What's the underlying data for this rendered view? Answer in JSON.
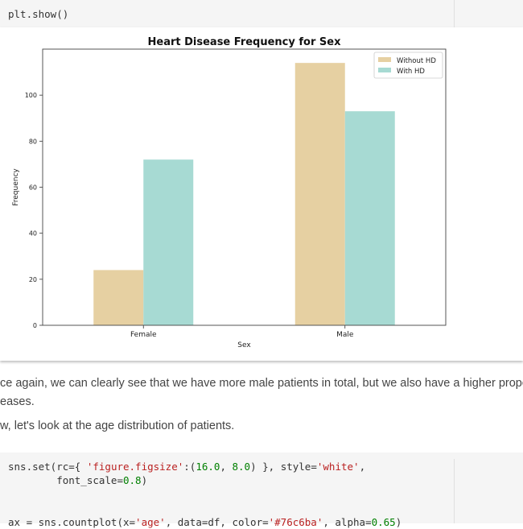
{
  "cell_top": {
    "code": "plt.show()"
  },
  "chart_data": {
    "type": "bar",
    "title": "Heart Disease Frequency for Sex",
    "xlabel": "Sex",
    "ylabel": "Frequency",
    "categories": [
      "Female",
      "Male"
    ],
    "series": [
      {
        "name": "Without HD",
        "values": [
          24,
          114
        ],
        "color": "#e6d0a2"
      },
      {
        "name": "With HD",
        "values": [
          72,
          93
        ],
        "color": "#a7dad3"
      }
    ],
    "ylim": [
      0,
      120
    ],
    "yticks": [
      "0",
      "20",
      "40",
      "60",
      "80",
      "100"
    ],
    "legend": "top-right",
    "grid": false
  },
  "markdown": {
    "line1": "ce again, we can clearly see that we have more male patients in total, but we also have a higher proport",
    "line2": "eases.",
    "line3": "w, let's look at the age distribution of patients."
  },
  "cell_bottom": {
    "line1_a": "sns.set(rc={ ",
    "line1_b": "'figure.figsize'",
    "line1_c": ":(",
    "line1_d": "16.0",
    "line1_e": ", ",
    "line1_f": "8.0",
    "line1_g": ") }, style=",
    "line1_h": "'white'",
    "line1_i": ",",
    "line2_a": "        font_scale=",
    "line2_b": "0.8",
    "line2_c": ")",
    "line3_a": "ax = sns.countplot(x=",
    "line3_b": "'age'",
    "line3_c": ", data=df, color=",
    "line3_d": "'#76c6ba'",
    "line3_e": ", alpha=",
    "line3_f": "0.65",
    "line3_g": ")"
  }
}
